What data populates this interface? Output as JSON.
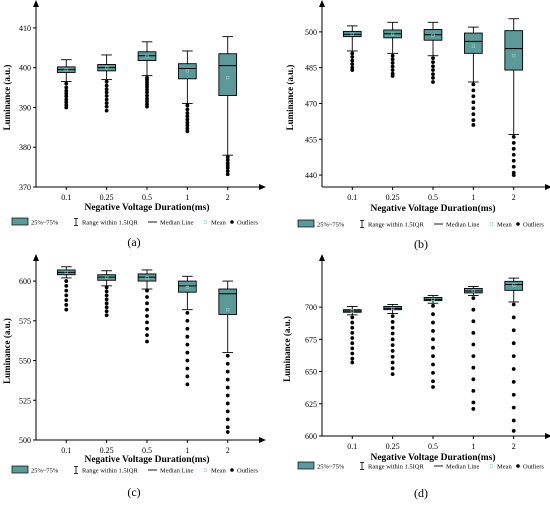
{
  "chart_data": [
    {
      "type": "box",
      "caption": "(a)",
      "xlabel": "Negative Voltage Duration(ms)",
      "ylabel": "Luminance (a.u.)",
      "ylim": [
        370,
        415
      ],
      "yticks": [
        370,
        380,
        390,
        400,
        410
      ],
      "box_color": "#5b9a98",
      "categories": [
        "0.1",
        "0.25",
        "0.5",
        "1",
        "2"
      ],
      "boxes": [
        {
          "whisker_low": 396.5,
          "q1": 398.8,
          "median": 399.5,
          "q3": 400.2,
          "whisker_high": 402.0,
          "mean": 399.5,
          "outliers": [
            396,
            395,
            394.2,
            393.5,
            392.8,
            392.0,
            391.3,
            390.6,
            390.0
          ]
        },
        {
          "whisker_low": 397.0,
          "q1": 399.2,
          "median": 400.0,
          "q3": 400.8,
          "whisker_high": 403.2,
          "mean": 400.0,
          "outliers": [
            396.5,
            395.5,
            394.6,
            393.8,
            392.9,
            392.0,
            391.1,
            390.2,
            389.2
          ]
        },
        {
          "whisker_low": 398.0,
          "q1": 401.8,
          "median": 403.0,
          "q3": 404.0,
          "whisker_high": 406.5,
          "mean": 402.8,
          "outliers": [
            397.5,
            397.0,
            396.4,
            395.8,
            395.2,
            394.5,
            393.8,
            393.0,
            392.2,
            391.5,
            390.8,
            390.2
          ]
        },
        {
          "whisker_low": 391.0,
          "q1": 397.2,
          "median": 399.8,
          "q3": 401.0,
          "whisker_high": 404.2,
          "mean": 399.2,
          "outliers": [
            390.5,
            389.5,
            388.6,
            387.8,
            387.0,
            386.2,
            385.5,
            384.7,
            384.0
          ]
        },
        {
          "whisker_low": 378.0,
          "q1": 393.0,
          "median": 400.5,
          "q3": 403.5,
          "whisker_high": 407.8,
          "mean": 397.5,
          "outliers": [
            377.5,
            376.8,
            376.0,
            375.4,
            374.8,
            374.0,
            373.2
          ]
        }
      ]
    },
    {
      "type": "box",
      "caption": "(b)",
      "xlabel": "Negative Voltage Duration(ms)",
      "ylabel": "Luminance (a.u.)",
      "ylim": [
        435,
        510
      ],
      "yticks": [
        440,
        455,
        470,
        485,
        500
      ],
      "box_color": "#5b9a98",
      "categories": [
        "0.1",
        "0.25",
        "0.5",
        "1",
        "2"
      ],
      "boxes": [
        {
          "whisker_low": 492.0,
          "q1": 498.0,
          "median": 499.0,
          "q3": 500.2,
          "whisker_high": 502.5,
          "mean": 499.0,
          "outliers": [
            491.0,
            489.5,
            488.0,
            486.5,
            485.0,
            484.0
          ]
        },
        {
          "whisker_low": 491.0,
          "q1": 497.5,
          "median": 499.2,
          "q3": 500.8,
          "whisker_high": 504.0,
          "mean": 499.0,
          "outliers": [
            490.0,
            488.5,
            487.0,
            485.5,
            484.0,
            482.5,
            481.5
          ]
        },
        {
          "whisker_low": 490.0,
          "q1": 496.5,
          "median": 498.8,
          "q3": 501.0,
          "whisker_high": 504.0,
          "mean": 498.5,
          "outliers": [
            489.0,
            487.3,
            485.6,
            484.0,
            482.3,
            480.7,
            479.0
          ]
        },
        {
          "whisker_low": 479.0,
          "q1": 491.0,
          "median": 496.0,
          "q3": 499.5,
          "whisker_high": 502.0,
          "mean": 494.0,
          "outliers": [
            478.0,
            475.5,
            473.0,
            470.5,
            468.0,
            465.5,
            463.0,
            461.0
          ]
        },
        {
          "whisker_low": 457.0,
          "q1": 484.0,
          "median": 493.0,
          "q3": 500.5,
          "whisker_high": 505.5,
          "mean": 490.0,
          "outliers": [
            456.0,
            453.5,
            451.0,
            448.5,
            446.0,
            443.5,
            441.0,
            440.0
          ]
        }
      ]
    },
    {
      "type": "box",
      "caption": "(c)",
      "xlabel": "Negative Voltage Duration(ms)",
      "ylabel": "Luminance (a.u.)",
      "ylim": [
        500,
        612
      ],
      "yticks": [
        500,
        525,
        550,
        575,
        600
      ],
      "box_color": "#5b9a98",
      "categories": [
        "0.1",
        "0.25",
        "0.5",
        "1",
        "2"
      ],
      "boxes": [
        {
          "whisker_low": 602.0,
          "q1": 604.0,
          "median": 605.5,
          "q3": 607.0,
          "whisker_high": 609.0,
          "mean": 605.5,
          "outliers": [
            600.0,
            597.0,
            594.0,
            591.0,
            588.0,
            585.0,
            582.0
          ]
        },
        {
          "whisker_low": 597.0,
          "q1": 600.5,
          "median": 602.5,
          "q3": 604.0,
          "whisker_high": 606.5,
          "mean": 602.3,
          "outliers": [
            596.0,
            593.5,
            591.0,
            588.5,
            586.0,
            583.5,
            581.0,
            578.5
          ]
        },
        {
          "whisker_low": 595.0,
          "q1": 600.0,
          "median": 602.5,
          "q3": 604.5,
          "whisker_high": 607.0,
          "mean": 602.0,
          "outliers": [
            594.0,
            590.0,
            586.0,
            582.0,
            578.0,
            574.0,
            570.0,
            566.0,
            562.0
          ]
        },
        {
          "whisker_low": 582.0,
          "q1": 593.0,
          "median": 597.0,
          "q3": 600.0,
          "whisker_high": 603.0,
          "mean": 596.0,
          "outliers": [
            580.0,
            575.0,
            570.0,
            565.0,
            560.0,
            555.0,
            550.0,
            545.0,
            540.0,
            535.0
          ]
        },
        {
          "whisker_low": 555.0,
          "q1": 579.0,
          "median": 592.0,
          "q3": 595.0,
          "whisker_high": 600.0,
          "mean": 582.0,
          "outliers": [
            553.0,
            548.0,
            543.0,
            538.0,
            533.0,
            528.0,
            523.0,
            518.0,
            513.0,
            508.0,
            505.0
          ]
        }
      ]
    },
    {
      "type": "box",
      "caption": "(d)",
      "xlabel": "Negative Voltage Duration(ms)",
      "ylabel": "Luminance (a.u.)",
      "ylim": [
        600,
        735
      ],
      "yticks": [
        600,
        625,
        650,
        675,
        700
      ],
      "box_color": "#5b9a98",
      "categories": [
        "0.1",
        "0.25",
        "0.5",
        "1",
        "2"
      ],
      "boxes": [
        {
          "whisker_low": 694.0,
          "q1": 696.0,
          "median": 697.0,
          "q3": 698.0,
          "whisker_high": 700.5,
          "mean": 697.0,
          "outliers": [
            692.0,
            688.0,
            684.0,
            680.0,
            676.0,
            672.0,
            668.0,
            664.0,
            660.0,
            657.0
          ]
        },
        {
          "whisker_low": 695.0,
          "q1": 698.0,
          "median": 699.0,
          "q3": 700.5,
          "whisker_high": 702.0,
          "mean": 699.0,
          "outliers": [
            693.0,
            688.5,
            684.0,
            679.5,
            675.0,
            670.5,
            666.0,
            661.5,
            657.0,
            652.5,
            648.0
          ]
        },
        {
          "whisker_low": 703.0,
          "q1": 705.0,
          "median": 706.0,
          "q3": 707.5,
          "whisker_high": 709.0,
          "mean": 706.0,
          "outliers": [
            701.0,
            694.5,
            688.0,
            681.5,
            675.0,
            668.5,
            662.0,
            655.5,
            649.0,
            642.5,
            638.0
          ]
        },
        {
          "whisker_low": 709.0,
          "q1": 711.0,
          "median": 712.5,
          "q3": 714.5,
          "whisker_high": 716.0,
          "mean": 712.5,
          "outliers": [
            707.0,
            698.0,
            689.0,
            680.0,
            671.0,
            662.0,
            653.0,
            644.0,
            635.0,
            626.0,
            621.0
          ]
        },
        {
          "whisker_low": 704.0,
          "q1": 713.0,
          "median": 717.5,
          "q3": 720.0,
          "whisker_high": 722.5,
          "mean": 717.0,
          "outliers": [
            702.0,
            692.0,
            682.0,
            672.0,
            662.0,
            652.0,
            642.0,
            632.0,
            622.0,
            612.0,
            604.0
          ]
        }
      ]
    }
  ],
  "legend": {
    "box_label": "25%~75%",
    "range_label": "Range within 1.5IQR",
    "median_label": "Median Line",
    "mean_label": "Mean",
    "outlier_label": "Outliers"
  }
}
